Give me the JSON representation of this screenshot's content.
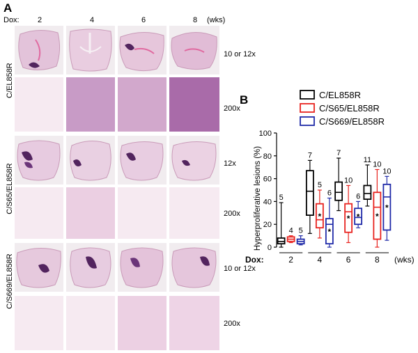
{
  "panel_a": {
    "letter": "A",
    "dox_label": "Dox:",
    "timepoints": [
      "2",
      "4",
      "6",
      "8"
    ],
    "unit": "(wks)",
    "rows": [
      {
        "genotype": "C/EL858R",
        "mag_low": "10 or 12x",
        "mag_high": "200x"
      },
      {
        "genotype": "C/S65/EL858R",
        "mag_low": "12x",
        "mag_high": "200x"
      },
      {
        "genotype": "C/S669/EL858R",
        "mag_low": "10 or 12x",
        "mag_high": "200x"
      }
    ]
  },
  "chart_data": {
    "type": "box",
    "panel_letter": "B",
    "ylabel": "Hyperproliferative lesions (%)",
    "xlabel_prefix": "Dox:",
    "x_unit": "(wks)",
    "ylim": [
      0,
      100
    ],
    "yticks": [
      "0",
      "20",
      "40",
      "60",
      "80",
      "100"
    ],
    "categories": [
      "2",
      "4",
      "6",
      "8"
    ],
    "legend_placement": "top-right",
    "significance_marker": "*",
    "series": [
      {
        "name": "C/EL858R",
        "color": "#000000",
        "boxes": [
          {
            "min": 0,
            "q1": 3,
            "median": 5,
            "q3": 8,
            "max": 39,
            "n": "5",
            "sig": false
          },
          {
            "min": 12,
            "q1": 28,
            "median": 49,
            "q3": 67,
            "max": 76,
            "n": "7",
            "sig": false
          },
          {
            "min": 32,
            "q1": 41,
            "median": 48,
            "q3": 57,
            "max": 78,
            "n": "7",
            "sig": false
          },
          {
            "min": 36,
            "q1": 42,
            "median": 47,
            "q3": 54,
            "max": 72,
            "n": "11",
            "sig": false
          }
        ]
      },
      {
        "name": "C/S65/EL858R",
        "color": "#e8231f",
        "boxes": [
          {
            "min": 4,
            "q1": 5,
            "median": 7,
            "q3": 9,
            "max": 10,
            "n": "4",
            "sig": false
          },
          {
            "min": 8,
            "q1": 17,
            "median": 24,
            "q3": 38,
            "max": 50,
            "n": "5",
            "sig": true
          },
          {
            "min": 4,
            "q1": 13,
            "median": 31,
            "q3": 38,
            "max": 54,
            "n": "10",
            "sig": true
          },
          {
            "min": 0,
            "q1": 7,
            "median": 35,
            "q3": 48,
            "max": 68,
            "n": "10",
            "sig": true
          }
        ]
      },
      {
        "name": "C/S669/EL858R",
        "color": "#1f2aa8",
        "boxes": [
          {
            "min": 2,
            "q1": 3,
            "median": 5,
            "q3": 7,
            "max": 10,
            "n": "5",
            "sig": false
          },
          {
            "min": 0,
            "q1": 3,
            "median": 20,
            "q3": 25,
            "max": 43,
            "n": "6",
            "sig": true
          },
          {
            "min": 17,
            "q1": 20,
            "median": 26,
            "q3": 34,
            "max": 40,
            "n": "6",
            "sig": true
          },
          {
            "min": 6,
            "q1": 15,
            "median": 44,
            "q3": 55,
            "max": 62,
            "n": "10",
            "sig": true
          }
        ]
      }
    ]
  }
}
